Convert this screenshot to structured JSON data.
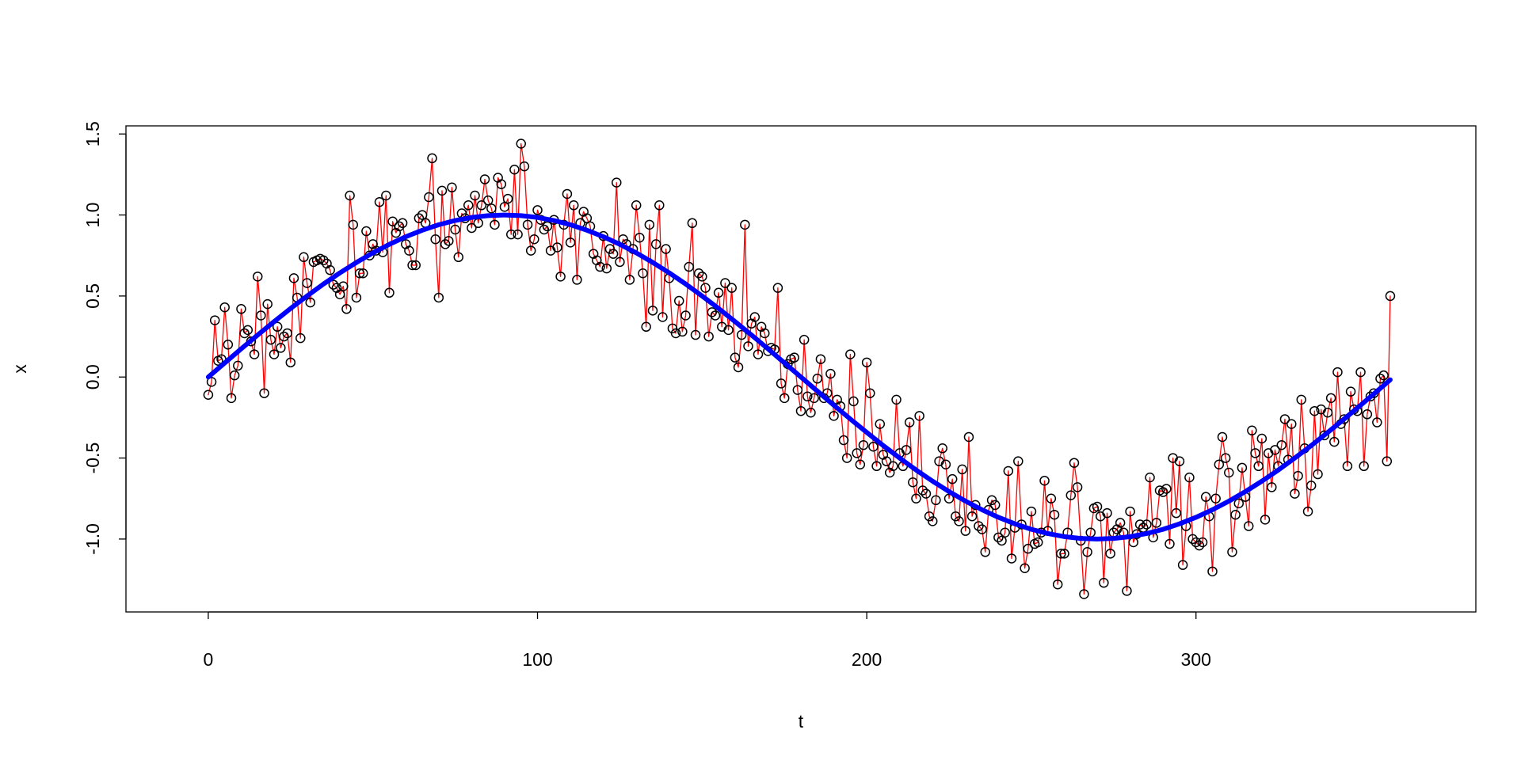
{
  "chart_data": {
    "type": "line",
    "x_label": "t",
    "y_label": "x",
    "xlim": [
      -25,
      385
    ],
    "ylim": [
      -1.45,
      1.55
    ],
    "xticks": [
      0,
      100,
      200,
      300
    ],
    "yticks": [
      {
        "value": -1,
        "label": "-1.0"
      },
      {
        "value": -0.5,
        "label": "-0.5"
      },
      {
        "value": 0,
        "label": "0.0"
      },
      {
        "value": 0.5,
        "label": "0.5"
      },
      {
        "value": 1,
        "label": "1.0"
      },
      {
        "value": 1.5,
        "label": "1.5"
      }
    ],
    "series": [
      {
        "color": "#ff0000",
        "marker": "circle",
        "marker_color": "#000000",
        "line_width": 1.3,
        "x": [
          0,
          1,
          2,
          3,
          4,
          5,
          6,
          7,
          8,
          9,
          10,
          11,
          12,
          13,
          14,
          15,
          16,
          17,
          18,
          19,
          20,
          21,
          22,
          23,
          24,
          25,
          26,
          27,
          28,
          29,
          30,
          31,
          32,
          33,
          34,
          35,
          36,
          37,
          38,
          39,
          40,
          41,
          42,
          43,
          44,
          45,
          46,
          47,
          48,
          49,
          50,
          51,
          52,
          53,
          54,
          55,
          56,
          57,
          58,
          59,
          60,
          61,
          62,
          63,
          64,
          65,
          66,
          67,
          68,
          69,
          70,
          71,
          72,
          73,
          74,
          75,
          76,
          77,
          78,
          79,
          80,
          81,
          82,
          83,
          84,
          85,
          86,
          87,
          88,
          89,
          90,
          91,
          92,
          93,
          94,
          95,
          96,
          97,
          98,
          99,
          100,
          101,
          102,
          103,
          104,
          105,
          106,
          107,
          108,
          109,
          110,
          111,
          112,
          113,
          114,
          115,
          116,
          117,
          118,
          119,
          120,
          121,
          122,
          123,
          124,
          125,
          126,
          127,
          128,
          129,
          130,
          131,
          132,
          133,
          134,
          135,
          136,
          137,
          138,
          139,
          140,
          141,
          142,
          143,
          144,
          145,
          146,
          147,
          148,
          149,
          150,
          151,
          152,
          153,
          154,
          155,
          156,
          157,
          158,
          159,
          160,
          161,
          162,
          163,
          164,
          165,
          166,
          167,
          168,
          169,
          170,
          171,
          172,
          173,
          174,
          175,
          176,
          177,
          178,
          179,
          180,
          181,
          182,
          183,
          184,
          185,
          186,
          187,
          188,
          189,
          190,
          191,
          192,
          193,
          194,
          195,
          196,
          197,
          198,
          199,
          200,
          201,
          202,
          203,
          204,
          205,
          206,
          207,
          208,
          209,
          210,
          211,
          212,
          213,
          214,
          215,
          216,
          217,
          218,
          219,
          220,
          221,
          222,
          223,
          224,
          225,
          226,
          227,
          228,
          229,
          230,
          231,
          232,
          233,
          234,
          235,
          236,
          237,
          238,
          239,
          240,
          241,
          242,
          243,
          244,
          245,
          246,
          247,
          248,
          249,
          250,
          251,
          252,
          253,
          254,
          255,
          256,
          257,
          258,
          259,
          260,
          261,
          262,
          263,
          264,
          265,
          266,
          267,
          268,
          269,
          270,
          271,
          272,
          273,
          274,
          275,
          276,
          277,
          278,
          279,
          280,
          281,
          282,
          283,
          284,
          285,
          286,
          287,
          288,
          289,
          290,
          291,
          292,
          293,
          294,
          295,
          296,
          297,
          298,
          299,
          300,
          301,
          302,
          303,
          304,
          305,
          306,
          307,
          308,
          309,
          310,
          311,
          312,
          313,
          314,
          315,
          316,
          317,
          318,
          319,
          320,
          321,
          322,
          323,
          324,
          325,
          326,
          327,
          328,
          329,
          330,
          331,
          332,
          333,
          334,
          335,
          336,
          337,
          338,
          339,
          340,
          341,
          342,
          343,
          344,
          345,
          346,
          347,
          348,
          349,
          350,
          351,
          352,
          353,
          354,
          355,
          356,
          357,
          358,
          359
        ],
        "values": [
          -0.11,
          -0.03,
          0.35,
          0.1,
          0.11,
          0.43,
          0.2,
          -0.13,
          0.01,
          0.07,
          0.42,
          0.27,
          0.29,
          0.22,
          0.14,
          0.62,
          0.38,
          -0.1,
          0.45,
          0.23,
          0.14,
          0.31,
          0.18,
          0.25,
          0.27,
          0.09,
          0.61,
          0.49,
          0.24,
          0.74,
          0.58,
          0.46,
          0.71,
          0.72,
          0.73,
          0.72,
          0.7,
          0.66,
          0.57,
          0.55,
          0.51,
          0.56,
          0.42,
          1.12,
          0.94,
          0.49,
          0.64,
          0.64,
          0.9,
          0.75,
          0.82,
          0.78,
          1.08,
          0.77,
          1.12,
          0.52,
          0.96,
          0.89,
          0.93,
          0.95,
          0.82,
          0.78,
          0.69,
          0.69,
          0.98,
          1.0,
          0.95,
          1.11,
          1.35,
          0.85,
          0.49,
          1.15,
          0.82,
          0.84,
          1.17,
          0.91,
          0.74,
          1.01,
          0.98,
          1.06,
          0.92,
          1.12,
          0.95,
          1.06,
          1.22,
          1.09,
          1.04,
          0.94,
          1.23,
          1.19,
          1.05,
          1.1,
          0.88,
          1.28,
          0.88,
          1.44,
          1.3,
          0.94,
          0.78,
          0.85,
          1.03,
          0.97,
          0.91,
          0.93,
          0.78,
          0.97,
          0.8,
          0.62,
          0.94,
          1.13,
          0.83,
          1.06,
          0.6,
          0.95,
          1.02,
          0.98,
          0.93,
          0.76,
          0.72,
          0.68,
          0.87,
          0.67,
          0.79,
          0.76,
          1.2,
          0.71,
          0.85,
          0.82,
          0.6,
          0.79,
          1.06,
          0.86,
          0.64,
          0.31,
          0.94,
          0.41,
          0.82,
          1.06,
          0.37,
          0.79,
          0.61,
          0.3,
          0.27,
          0.47,
          0.28,
          0.38,
          0.68,
          0.95,
          0.26,
          0.64,
          0.62,
          0.55,
          0.25,
          0.4,
          0.38,
          0.52,
          0.31,
          0.58,
          0.29,
          0.55,
          0.12,
          0.06,
          0.26,
          0.94,
          0.19,
          0.33,
          0.37,
          0.14,
          0.31,
          0.27,
          0.16,
          0.18,
          0.17,
          0.55,
          -0.04,
          -0.13,
          0.08,
          0.11,
          0.12,
          -0.08,
          -0.21,
          0.23,
          -0.12,
          -0.22,
          -0.13,
          -0.01,
          0.11,
          -0.13,
          -0.1,
          0.02,
          -0.24,
          -0.14,
          -0.18,
          -0.39,
          -0.5,
          0.14,
          -0.15,
          -0.47,
          -0.54,
          -0.42,
          0.09,
          -0.1,
          -0.43,
          -0.55,
          -0.29,
          -0.48,
          -0.52,
          -0.59,
          -0.55,
          -0.14,
          -0.47,
          -0.55,
          -0.45,
          -0.28,
          -0.65,
          -0.75,
          -0.24,
          -0.7,
          -0.72,
          -0.86,
          -0.89,
          -0.76,
          -0.52,
          -0.44,
          -0.54,
          -0.75,
          -0.63,
          -0.86,
          -0.89,
          -0.57,
          -0.95,
          -0.37,
          -0.86,
          -0.79,
          -0.92,
          -0.94,
          -1.08,
          -0.82,
          -0.76,
          -0.79,
          -0.99,
          -1.01,
          -0.96,
          -0.58,
          -1.12,
          -0.93,
          -0.52,
          -0.91,
          -1.18,
          -1.06,
          -0.83,
          -1.03,
          -1.02,
          -0.96,
          -0.64,
          -0.95,
          -0.75,
          -0.85,
          -1.28,
          -1.09,
          -1.09,
          -0.96,
          -0.73,
          -0.53,
          -0.68,
          -1.01,
          -1.34,
          -1.08,
          -0.96,
          -0.81,
          -0.8,
          -0.86,
          -1.27,
          -0.84,
          -1.09,
          -0.96,
          -0.94,
          -0.9,
          -0.96,
          -1.32,
          -0.83,
          -1.02,
          -0.97,
          -0.91,
          -0.93,
          -0.91,
          -0.62,
          -0.99,
          -0.9,
          -0.7,
          -0.71,
          -0.69,
          -1.03,
          -0.5,
          -0.84,
          -0.52,
          -1.16,
          -0.92,
          -0.62,
          -1.0,
          -1.02,
          -1.04,
          -1.02,
          -0.74,
          -0.86,
          -1.2,
          -0.75,
          -0.54,
          -0.37,
          -0.5,
          -0.59,
          -1.08,
          -0.85,
          -0.78,
          -0.56,
          -0.74,
          -0.92,
          -0.33,
          -0.47,
          -0.55,
          -0.38,
          -0.88,
          -0.47,
          -0.68,
          -0.45,
          -0.55,
          -0.42,
          -0.26,
          -0.51,
          -0.29,
          -0.72,
          -0.61,
          -0.14,
          -0.44,
          -0.83,
          -0.67,
          -0.21,
          -0.6,
          -0.2,
          -0.36,
          -0.22,
          -0.13,
          -0.4,
          0.03,
          -0.29,
          -0.26,
          -0.55,
          -0.09,
          -0.2,
          -0.21,
          0.03,
          -0.55,
          -0.23,
          -0.12,
          -0.1,
          -0.28,
          -0.01,
          0.01,
          -0.52,
          0.5
        ]
      },
      {
        "color": "#0000ff",
        "line_width": 6,
        "x": [
          0,
          5,
          10,
          15,
          20,
          25,
          30,
          35,
          40,
          45,
          50,
          55,
          60,
          65,
          70,
          75,
          80,
          85,
          90,
          95,
          100,
          105,
          110,
          115,
          120,
          125,
          130,
          135,
          140,
          145,
          150,
          155,
          160,
          165,
          170,
          175,
          180,
          185,
          190,
          195,
          200,
          205,
          210,
          215,
          220,
          225,
          230,
          235,
          240,
          245,
          250,
          255,
          260,
          265,
          270,
          275,
          280,
          285,
          290,
          295,
          300,
          305,
          310,
          315,
          320,
          325,
          330,
          335,
          340,
          345,
          350,
          355,
          359
        ],
        "values": [
          0,
          0.087,
          0.174,
          0.259,
          0.342,
          0.423,
          0.5,
          0.574,
          0.643,
          0.707,
          0.766,
          0.819,
          0.866,
          0.906,
          0.94,
          0.966,
          0.985,
          0.996,
          1,
          0.996,
          0.985,
          0.966,
          0.94,
          0.906,
          0.866,
          0.819,
          0.766,
          0.707,
          0.643,
          0.574,
          0.5,
          0.423,
          0.342,
          0.259,
          0.174,
          0.087,
          0,
          -0.087,
          -0.174,
          -0.259,
          -0.342,
          -0.423,
          -0.5,
          -0.574,
          -0.643,
          -0.707,
          -0.766,
          -0.819,
          -0.866,
          -0.906,
          -0.94,
          -0.966,
          -0.985,
          -0.996,
          -1,
          -0.996,
          -0.985,
          -0.966,
          -0.94,
          -0.906,
          -0.866,
          -0.819,
          -0.766,
          -0.707,
          -0.643,
          -0.574,
          -0.5,
          -0.423,
          -0.342,
          -0.259,
          -0.174,
          -0.087,
          -0.017
        ]
      }
    ]
  }
}
